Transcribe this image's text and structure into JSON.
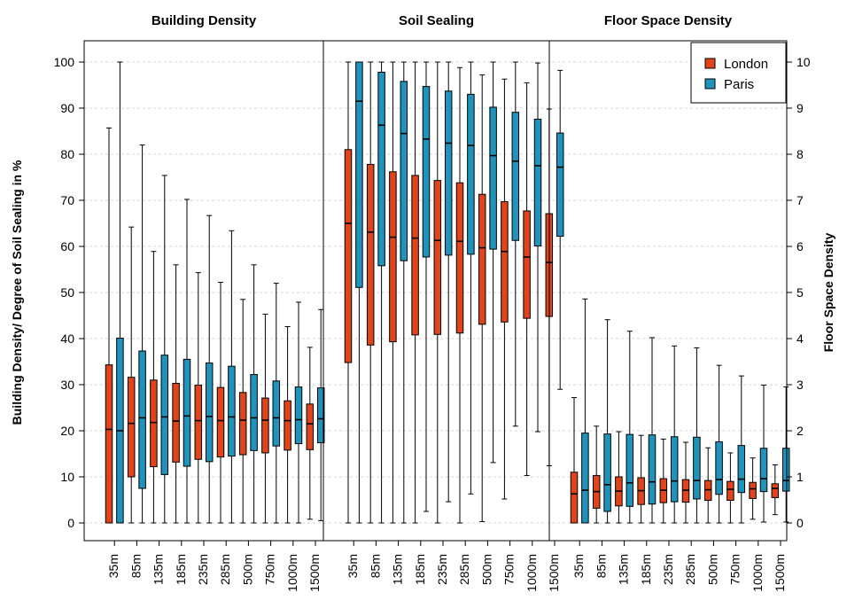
{
  "chart_data": {
    "type": "boxplot",
    "panels": [
      {
        "title": "Building Density",
        "axis": "left",
        "categories": [
          "35m",
          "85m",
          "135m",
          "185m",
          "235m",
          "285m",
          "500m",
          "750m",
          "1000m",
          "1500m"
        ],
        "series": [
          {
            "name": "London",
            "color": "#E0441A",
            "boxes": [
              {
                "min": 0,
                "q1": 0,
                "median": 20.3,
                "q3": 34.3,
                "max": 85.7
              },
              {
                "min": 0,
                "q1": 10,
                "median": 21.6,
                "q3": 31.6,
                "max": 64.2
              },
              {
                "min": 0,
                "q1": 12.2,
                "median": 21.8,
                "q3": 31,
                "max": 58.9
              },
              {
                "min": 0,
                "q1": 13.2,
                "median": 22.1,
                "q3": 30.3,
                "max": 56
              },
              {
                "min": 0,
                "q1": 13.8,
                "median": 22.2,
                "q3": 29.9,
                "max": 54.3
              },
              {
                "min": 0,
                "q1": 14.3,
                "median": 22.2,
                "q3": 29.4,
                "max": 52.2
              },
              {
                "min": 0,
                "q1": 14.8,
                "median": 22.3,
                "q3": 28.3,
                "max": 48.5
              },
              {
                "min": 0,
                "q1": 15.2,
                "median": 22.3,
                "q3": 27.1,
                "max": 45.3
              },
              {
                "min": 0,
                "q1": 15.8,
                "median": 22.2,
                "q3": 26.5,
                "max": 42.6
              },
              {
                "min": 0.8,
                "q1": 15.9,
                "median": 21.5,
                "q3": 25.8,
                "max": 38.1
              }
            ]
          },
          {
            "name": "Paris",
            "color": "#1F93BC",
            "boxes": [
              {
                "min": 0,
                "q1": 0,
                "median": 20,
                "q3": 40.1,
                "max": 100
              },
              {
                "min": 0,
                "q1": 7.5,
                "median": 22.8,
                "q3": 37.3,
                "max": 82
              },
              {
                "min": 0,
                "q1": 10.5,
                "median": 23,
                "q3": 36.4,
                "max": 75.4
              },
              {
                "min": 0,
                "q1": 12.3,
                "median": 23.2,
                "q3": 35.5,
                "max": 70.2
              },
              {
                "min": 0,
                "q1": 13.3,
                "median": 23.1,
                "q3": 34.7,
                "max": 66.7
              },
              {
                "min": 0,
                "q1": 14.5,
                "median": 23,
                "q3": 34,
                "max": 63.4
              },
              {
                "min": 0,
                "q1": 15.7,
                "median": 22.8,
                "q3": 32.2,
                "max": 56
              },
              {
                "min": 0,
                "q1": 16.7,
                "median": 22.8,
                "q3": 30.8,
                "max": 52
              },
              {
                "min": 0,
                "q1": 17.2,
                "median": 22.4,
                "q3": 29.5,
                "max": 47.9
              },
              {
                "min": 0.5,
                "q1": 17.4,
                "median": 22.6,
                "q3": 29.3,
                "max": 46.3
              }
            ]
          }
        ]
      },
      {
        "title": "Soil Sealing",
        "axis": "left",
        "categories": [
          "35m",
          "85m",
          "135m",
          "185m",
          "235m",
          "285m",
          "500m",
          "750m",
          "1000m",
          "1500m"
        ],
        "series": [
          {
            "name": "London",
            "color": "#E0441A",
            "boxes": [
              {
                "min": 0,
                "q1": 34.8,
                "median": 65,
                "q3": 81,
                "max": 100
              },
              {
                "min": 0,
                "q1": 38.6,
                "median": 63.1,
                "q3": 77.8,
                "max": 100
              },
              {
                "min": 0,
                "q1": 39.3,
                "median": 62,
                "q3": 76.2,
                "max": 100
              },
              {
                "min": 0,
                "q1": 40.8,
                "median": 61.8,
                "q3": 75.4,
                "max": 100
              },
              {
                "min": 0,
                "q1": 40.9,
                "median": 61.3,
                "q3": 74.3,
                "max": 100
              },
              {
                "min": 0,
                "q1": 41.2,
                "median": 61.1,
                "q3": 73.8,
                "max": 98.8
              },
              {
                "min": 0.3,
                "q1": 43.1,
                "median": 59.7,
                "q3": 71.3,
                "max": 97.2
              },
              {
                "min": 5.2,
                "q1": 43.6,
                "median": 58.9,
                "q3": 69.7,
                "max": 96.3
              },
              {
                "min": 10.3,
                "q1": 44.4,
                "median": 57.7,
                "q3": 67.7,
                "max": 95.5
              },
              {
                "min": 12.4,
                "q1": 44.8,
                "median": 56.5,
                "q3": 67.1,
                "max": 89.8
              }
            ]
          },
          {
            "name": "Paris",
            "color": "#1F93BC",
            "boxes": [
              {
                "min": 0,
                "q1": 51.1,
                "median": 91.5,
                "q3": 100,
                "max": 100
              },
              {
                "min": 0,
                "q1": 55.8,
                "median": 86.3,
                "q3": 97.8,
                "max": 100
              },
              {
                "min": 0,
                "q1": 56.9,
                "median": 84.5,
                "q3": 95.8,
                "max": 100
              },
              {
                "min": 2.5,
                "q1": 57.7,
                "median": 83.3,
                "q3": 94.7,
                "max": 100
              },
              {
                "min": 4.6,
                "q1": 58.1,
                "median": 82.4,
                "q3": 93.7,
                "max": 100
              },
              {
                "min": 6.3,
                "q1": 58.3,
                "median": 81.9,
                "q3": 93,
                "max": 100
              },
              {
                "min": 13.1,
                "q1": 59.4,
                "median": 79.7,
                "q3": 90.2,
                "max": 100
              },
              {
                "min": 21,
                "q1": 61.3,
                "median": 78.5,
                "q3": 89.1,
                "max": 100
              },
              {
                "min": 19.8,
                "q1": 60.1,
                "median": 77.5,
                "q3": 87.6,
                "max": 99.8
              },
              {
                "min": 29,
                "q1": 62.2,
                "median": 77.2,
                "q3": 84.6,
                "max": 98.2
              }
            ]
          }
        ]
      },
      {
        "title": "Floor Space Density",
        "axis": "right",
        "categories": [
          "35m",
          "85m",
          "135m",
          "185m",
          "235m",
          "285m",
          "500m",
          "750m",
          "1000m",
          "1500m"
        ],
        "series": [
          {
            "name": "London",
            "color": "#E0441A",
            "boxes": [
              {
                "min": 0,
                "q1": 0,
                "median": 0.63,
                "q3": 1.1,
                "max": 2.72
              },
              {
                "min": 0,
                "q1": 0.32,
                "median": 0.68,
                "q3": 1.03,
                "max": 2.1
              },
              {
                "min": 0,
                "q1": 0.37,
                "median": 0.69,
                "q3": 1,
                "max": 1.98
              },
              {
                "min": 0,
                "q1": 0.4,
                "median": 0.7,
                "q3": 0.98,
                "max": 1.9
              },
              {
                "min": 0,
                "q1": 0.44,
                "median": 0.71,
                "q3": 0.96,
                "max": 1.82
              },
              {
                "min": 0,
                "q1": 0.45,
                "median": 0.71,
                "q3": 0.94,
                "max": 1.75
              },
              {
                "min": 0,
                "q1": 0.49,
                "median": 0.72,
                "q3": 0.92,
                "max": 1.63
              },
              {
                "min": 0,
                "q1": 0.49,
                "median": 0.73,
                "q3": 0.9,
                "max": 1.52
              },
              {
                "min": 0.08,
                "q1": 0.53,
                "median": 0.74,
                "q3": 0.88,
                "max": 1.41
              },
              {
                "min": 0.18,
                "q1": 0.55,
                "median": 0.75,
                "q3": 0.85,
                "max": 1.26
              }
            ]
          },
          {
            "name": "Paris",
            "color": "#1F93BC",
            "boxes": [
              {
                "min": 0,
                "q1": 0,
                "median": 0.71,
                "q3": 1.95,
                "max": 4.86
              },
              {
                "min": 0,
                "q1": 0.25,
                "median": 0.83,
                "q3": 1.93,
                "max": 4.41
              },
              {
                "min": 0,
                "q1": 0.36,
                "median": 0.87,
                "q3": 1.92,
                "max": 4.16
              },
              {
                "min": 0,
                "q1": 0.41,
                "median": 0.89,
                "q3": 1.91,
                "max": 4.02
              },
              {
                "min": 0,
                "q1": 0.46,
                "median": 0.91,
                "q3": 1.87,
                "max": 3.84
              },
              {
                "min": 0,
                "q1": 0.52,
                "median": 0.92,
                "q3": 1.86,
                "max": 3.8
              },
              {
                "min": 0,
                "q1": 0.62,
                "median": 0.94,
                "q3": 1.76,
                "max": 3.42
              },
              {
                "min": 0,
                "q1": 0.66,
                "median": 0.95,
                "q3": 1.68,
                "max": 3.19
              },
              {
                "min": 0.02,
                "q1": 0.68,
                "median": 0.96,
                "q3": 1.62,
                "max": 2.99
              },
              {
                "min": 0.02,
                "q1": 0.69,
                "median": 0.92,
                "q3": 1.62,
                "max": 2.95
              }
            ]
          }
        ]
      }
    ],
    "left_axis": {
      "label": "Building Density/ Degree of Soil Sealing in %",
      "range": [
        0,
        100
      ],
      "ticks": [
        0,
        10,
        20,
        30,
        40,
        50,
        60,
        70,
        80,
        90,
        100
      ]
    },
    "right_axis": {
      "label": "Floor Space Density",
      "range": [
        0,
        10
      ],
      "ticks": [
        0,
        1,
        2,
        3,
        4,
        5,
        6,
        7,
        8,
        9,
        10
      ]
    },
    "legend": {
      "placement": "top-right",
      "entries": [
        {
          "name": "London",
          "color": "#E0441A"
        },
        {
          "name": "Paris",
          "color": "#1F93BC"
        }
      ]
    },
    "grid": "horizontal-dashed"
  }
}
